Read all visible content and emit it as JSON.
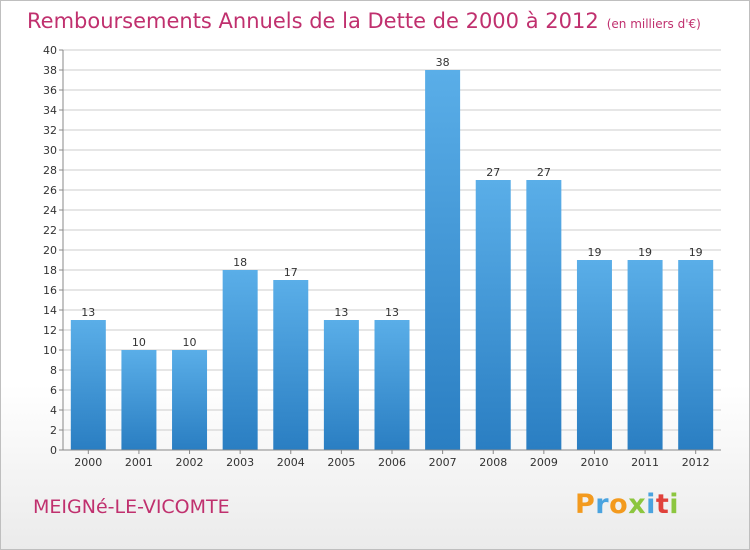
{
  "header": {
    "title": "Remboursements Annuels de la Dette de 2000 à 2012",
    "unit": "(en milliers d'€)"
  },
  "footer": {
    "commune": "MEIGNé-LE-VICOMTE",
    "brand": "Proxiti",
    "brand_colors": [
      "#f39a1e",
      "#4aa3df",
      "#f39a1e",
      "#8cc63f",
      "#4aa3df",
      "#e0413b",
      "#8cc63f"
    ]
  },
  "colors": {
    "title": "#c0306e",
    "bar_light": "#5aaee8",
    "bar_dark": "#2a7ec2",
    "grid": "#cccccc"
  },
  "chart_data": {
    "type": "bar",
    "categories": [
      "2000",
      "2001",
      "2002",
      "2003",
      "2004",
      "2005",
      "2006",
      "2007",
      "2008",
      "2009",
      "2010",
      "2011",
      "2012"
    ],
    "values": [
      13,
      10,
      10,
      18,
      17,
      13,
      13,
      38,
      27,
      27,
      19,
      19,
      19
    ],
    "ylim": [
      0,
      40
    ],
    "ytick_step": 2,
    "grid": true,
    "data_labels": true
  }
}
